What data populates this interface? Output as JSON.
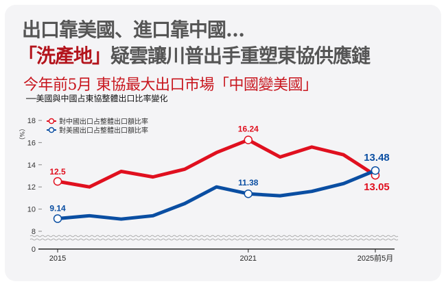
{
  "headline": {
    "line1": "出口靠美國、進口靠中國…",
    "line2_highlight": "「洗產地」",
    "line2_rest": "疑雲讓川普出手重塑東協供應鏈"
  },
  "subtitle": "今年前5月  東協最大出口市場「中國變美國」",
  "caption": "──美國與中國占東協整體出口比率變化",
  "chart_data": {
    "type": "line",
    "title": "美國與中國占東協整體出口比率變化",
    "ylabel": "%",
    "y_unit_label": "（%）",
    "ylim": [
      8,
      18
    ],
    "axis_break": "between 0 and 8",
    "yticks": [
      "18",
      "16",
      "14",
      "12",
      "10",
      "8",
      "0"
    ],
    "x": [
      2015,
      2016,
      2017,
      2018,
      2019,
      2020,
      2021,
      2022,
      2023,
      2024,
      2025
    ],
    "xtick_labels": [
      {
        "x": 2015,
        "label": "2015"
      },
      {
        "x": 2021,
        "label": "2021"
      },
      {
        "x": 2025,
        "label": "2025前5月"
      }
    ],
    "legend_position": "top-left",
    "series": [
      {
        "name": "對中國出口占整體出口額比率",
        "color": "#e0101f",
        "values": [
          12.5,
          12.0,
          13.4,
          12.9,
          13.6,
          15.1,
          16.24,
          14.7,
          15.6,
          14.9,
          13.05
        ],
        "labels": [
          {
            "index": 0,
            "text": "12.5"
          },
          {
            "index": 6,
            "text": "16.24"
          },
          {
            "index": 10,
            "text": "13.05"
          }
        ]
      },
      {
        "name": "對美國出口占整體出口額比率",
        "color": "#0a4ea2",
        "values": [
          9.14,
          9.4,
          9.1,
          9.4,
          10.5,
          12.0,
          11.38,
          11.2,
          11.6,
          12.3,
          13.48
        ],
        "labels": [
          {
            "index": 0,
            "text": "9.14"
          },
          {
            "index": 6,
            "text": "11.38"
          },
          {
            "index": 10,
            "text": "13.48"
          }
        ]
      }
    ]
  }
}
